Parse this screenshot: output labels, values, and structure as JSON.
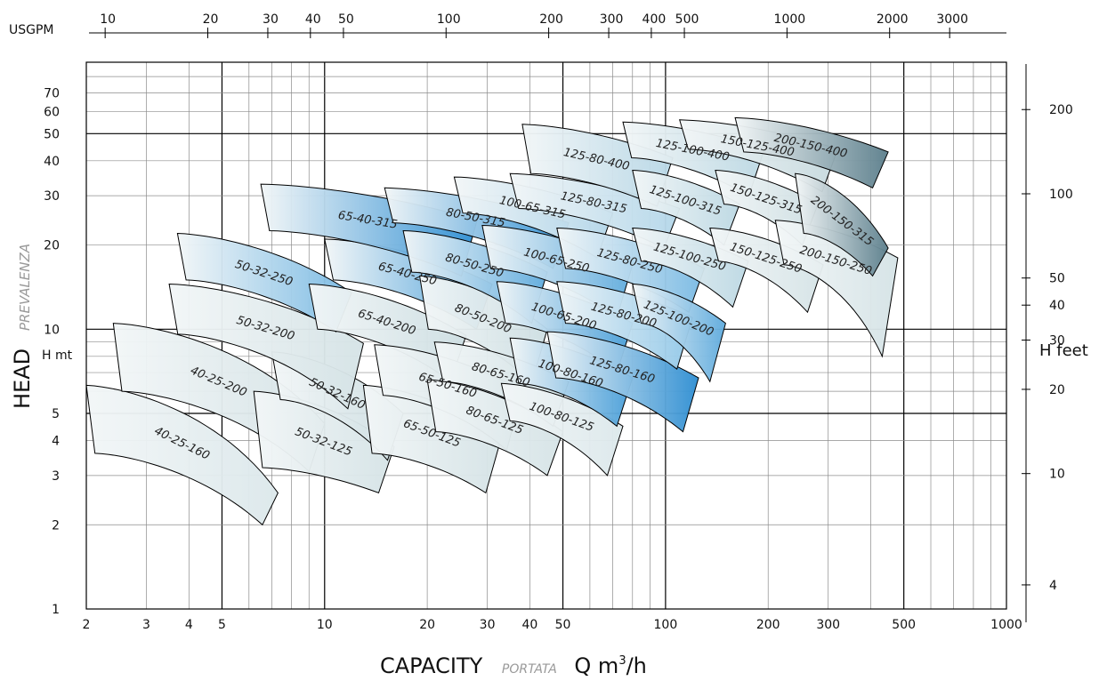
{
  "chart_data": {
    "type": "area",
    "title": "",
    "xlabel": "CAPACITY",
    "xlabel_italic": "PORTATA",
    "xunit_base": "Q m",
    "xunit_sup": "3",
    "xunit_suffix": "/h",
    "ylabel": "HEAD",
    "ylabel_italic": "PREVALENZA",
    "ylabel_unit": "H mt",
    "y2label": "H feet",
    "top_axis_label": "USGPM",
    "x_scale": "log",
    "y_scale": "log",
    "xlim": [
      2,
      1000
    ],
    "ylim": [
      1,
      90
    ],
    "grid": true,
    "x_ticks": [
      "2",
      "3",
      "4",
      "5",
      "10",
      "20",
      "30",
      "40",
      "50",
      "100",
      "200",
      "300",
      "500",
      "1000"
    ],
    "y_ticks": [
      "1",
      "2",
      "3",
      "4",
      "5",
      "10",
      "20",
      "30",
      "40",
      "50",
      "60",
      "70"
    ],
    "top_ticks": [
      "10",
      "20",
      "30",
      "40",
      "50",
      "100",
      "200",
      "300",
      "400",
      "500",
      "1000",
      "2000",
      "3000"
    ],
    "right_ticks": [
      "4",
      "10",
      "20",
      "30",
      "40",
      "50",
      "100",
      "200"
    ],
    "bands": [
      {
        "name": "40-25-160",
        "q": [
          2.0,
          7.3
        ],
        "h_top": [
          6.3,
          2.6
        ],
        "h_bot": [
          3.6,
          2.0
        ],
        "tone": 0.15
      },
      {
        "name": "40-25-200",
        "q": [
          2.4,
          10.0
        ],
        "h_top": [
          10.5,
          4.6
        ],
        "h_bot": [
          6.0,
          3.1
        ],
        "tone": 0.2
      },
      {
        "name": "50-32-125",
        "q": [
          6.2,
          16.0
        ],
        "h_top": [
          6.0,
          3.8
        ],
        "h_bot": [
          3.2,
          2.6
        ],
        "tone": 0.2
      },
      {
        "name": "50-32-160",
        "q": [
          7.0,
          17.0
        ],
        "h_top": [
          8.3,
          5.0
        ],
        "h_bot": [
          5.6,
          3.4
        ],
        "tone": 0.25
      },
      {
        "name": "50-32-200",
        "q": [
          3.5,
          13.0
        ],
        "h_top": [
          14.5,
          8.9
        ],
        "h_bot": [
          9.6,
          5.2
        ],
        "tone": 0.2
      },
      {
        "name": "50-32-250",
        "q": [
          3.7,
          12.0
        ],
        "h_top": [
          22.0,
          13.5
        ],
        "h_bot": [
          15.0,
          9.8
        ],
        "tone": 0.7
      },
      {
        "name": "65-40-200",
        "q": [
          9.0,
          26.0
        ],
        "h_top": [
          14.5,
          9.5
        ],
        "h_bot": [
          10.0,
          6.5
        ],
        "tone": 0.25
      },
      {
        "name": "65-40-250",
        "q": [
          10.0,
          31.0
        ],
        "h_top": [
          21.0,
          14.5
        ],
        "h_bot": [
          15.0,
          10.0
        ],
        "tone": 0.8
      },
      {
        "name": "65-40-315",
        "q": [
          6.5,
          28.0
        ],
        "h_top": [
          33.0,
          24.5
        ],
        "h_bot": [
          22.5,
          15.5
        ],
        "tone": 0.85
      },
      {
        "name": "65-50-125",
        "q": [
          13.0,
          33.0
        ],
        "h_top": [
          6.3,
          4.1
        ],
        "h_bot": [
          3.6,
          2.6
        ],
        "tone": 0.2
      },
      {
        "name": "65-50-160",
        "q": [
          14.0,
          38.0
        ],
        "h_top": [
          8.8,
          6.0
        ],
        "h_bot": [
          5.8,
          3.7
        ],
        "tone": 0.25
      },
      {
        "name": "80-50-200",
        "q": [
          19.0,
          45.0
        ],
        "h_top": [
          15.5,
          10.0
        ],
        "h_bot": [
          10.0,
          6.4
        ],
        "tone": 0.25
      },
      {
        "name": "80-50-250",
        "q": [
          17.0,
          45.0
        ],
        "h_top": [
          22.5,
          16.0
        ],
        "h_bot": [
          16.0,
          10.5
        ],
        "tone": 0.75
      },
      {
        "name": "80-50-315",
        "q": [
          15.0,
          52.0
        ],
        "h_top": [
          32.0,
          24.0
        ],
        "h_bot": [
          24.0,
          16.5
        ],
        "tone": 0.85
      },
      {
        "name": "80-65-125",
        "q": [
          20.0,
          50.0
        ],
        "h_top": [
          6.6,
          4.3
        ],
        "h_bot": [
          4.3,
          3.0
        ],
        "tone": 0.2
      },
      {
        "name": "80-65-160",
        "q": [
          21.0,
          52.0
        ],
        "h_top": [
          9.0,
          6.5
        ],
        "h_bot": [
          6.5,
          4.5
        ],
        "tone": 0.25
      },
      {
        "name": "100-65-200",
        "q": [
          32.0,
          80.0
        ],
        "h_top": [
          14.8,
          10.5
        ],
        "h_bot": [
          10.5,
          7.0
        ],
        "tone": 0.8
      },
      {
        "name": "100-65-250",
        "q": [
          29.0,
          80.0
        ],
        "h_top": [
          23.5,
          17.0
        ],
        "h_bot": [
          16.5,
          11.0
        ],
        "tone": 0.75
      },
      {
        "name": "100-65-315",
        "q": [
          24.0,
          70.0
        ],
        "h_top": [
          35.0,
          26.0
        ],
        "h_bot": [
          26.0,
          18.0
        ],
        "tone": 0.5
      },
      {
        "name": "100-80-125",
        "q": [
          33.0,
          75.0
        ],
        "h_top": [
          6.4,
          4.5
        ],
        "h_bot": [
          4.7,
          3.0
        ],
        "tone": 0.15
      },
      {
        "name": "100-80-160",
        "q": [
          35.0,
          80.0
        ],
        "h_top": [
          9.3,
          6.7
        ],
        "h_bot": [
          6.4,
          4.5
        ],
        "tone": 0.8
      },
      {
        "name": "125-80-160",
        "q": [
          45.0,
          125.0
        ],
        "h_top": [
          9.8,
          6.7
        ],
        "h_bot": [
          6.7,
          4.3
        ],
        "tone": 0.85
      },
      {
        "name": "125-80-200",
        "q": [
          48.0,
          120.0
        ],
        "h_top": [
          14.8,
          11.0
        ],
        "h_bot": [
          10.5,
          7.2
        ],
        "tone": 0.65
      },
      {
        "name": "125-80-250",
        "q": [
          48.0,
          130.0
        ],
        "h_top": [
          23.0,
          16.5
        ],
        "h_bot": [
          16.5,
          11.5
        ],
        "tone": 0.7
      },
      {
        "name": "125-80-315",
        "q": [
          35.0,
          110.0
        ],
        "h_top": [
          36.0,
          27.0
        ],
        "h_bot": [
          27.0,
          19.5
        ],
        "tone": 0.5
      },
      {
        "name": "125-80-400",
        "q": [
          38.0,
          105.0
        ],
        "h_top": [
          54.0,
          41.0
        ],
        "h_bot": [
          36.0,
          27.5
        ],
        "tone": 0.45
      },
      {
        "name": "125-100-200",
        "q": [
          80.0,
          150.0
        ],
        "h_top": [
          14.5,
          10.5
        ],
        "h_bot": [
          10.5,
          6.5
        ],
        "tone": 0.75
      },
      {
        "name": "125-100-250",
        "q": [
          80.0,
          175.0
        ],
        "h_top": [
          23.0,
          17.5
        ],
        "h_bot": [
          17.5,
          12.0
        ],
        "tone": 0.4
      },
      {
        "name": "125-100-315",
        "q": [
          80.0,
          165.0
        ],
        "h_top": [
          37.0,
          28.0
        ],
        "h_bot": [
          27.0,
          20.0
        ],
        "tone": 0.4
      },
      {
        "name": "125-100-400",
        "q": [
          75.0,
          195.0
        ],
        "h_top": [
          55.0,
          44.0
        ],
        "h_bot": [
          41.0,
          30.0
        ],
        "tone": 0.4
      },
      {
        "name": "150-125-250",
        "q": [
          135.0,
          290.0
        ],
        "h_top": [
          23.0,
          17.0
        ],
        "h_bot": [
          17.5,
          11.5
        ],
        "tone": 0.2
      },
      {
        "name": "150-125-315",
        "q": [
          140.0,
          280.0
        ],
        "h_top": [
          37.0,
          28.0
        ],
        "h_bot": [
          28.0,
          20.0
        ],
        "tone": 0.25
      },
      {
        "name": "150-125-400",
        "q": [
          110.0,
          320.0
        ],
        "h_top": [
          56.0,
          44.0
        ],
        "h_bot": [
          44.0,
          31.0
        ],
        "tone": 0.3
      },
      {
        "name": "200-150-250",
        "q": [
          210.0,
          480.0
        ],
        "h_top": [
          24.5,
          18.0
        ],
        "h_bot": [
          17.0,
          8.0
        ],
        "tone": 0.2
      },
      {
        "name": "200-150-315",
        "q": [
          240.0,
          450.0
        ],
        "h_top": [
          36.0,
          19.5
        ],
        "h_bot": [
          22.0,
          15.5
        ],
        "tone": 0.92
      },
      {
        "name": "200-150-400",
        "q": [
          160.0,
          450.0
        ],
        "h_top": [
          57.0,
          43.0
        ],
        "h_bot": [
          43.0,
          32.0
        ],
        "tone": 0.92
      }
    ]
  },
  "colors": {
    "light": "#f2f6f7",
    "mid_gray": "#c6d9de",
    "blue": "#1f86cf",
    "light_blue": "#a9d5ee",
    "slate": "#5c7f8c",
    "grid_major": "#000000",
    "grid_minor": "#8c8c8c"
  }
}
